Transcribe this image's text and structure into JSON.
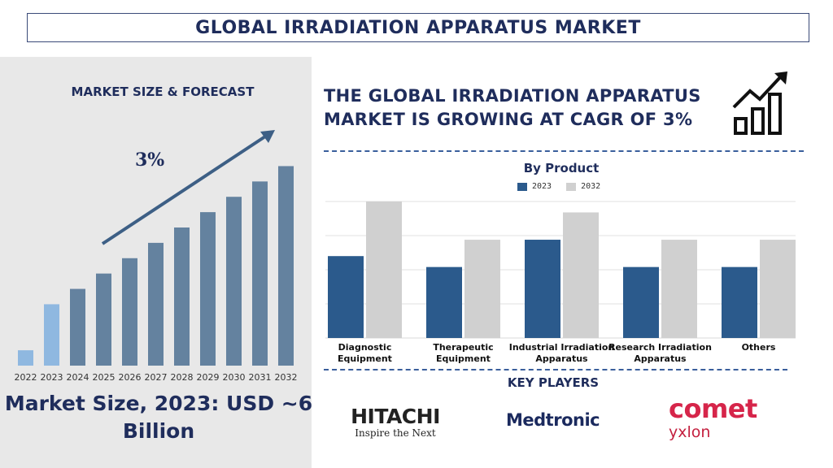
{
  "title": "GLOBAL IRRADIATION APPARATUS MARKET",
  "left": {
    "heading": "MARKET SIZE & FORECAST",
    "cagr_label": "3%",
    "market_size_text": "Market Size, 2023: USD ~6 Billion"
  },
  "headline": "THE GLOBAL IRRADIATION APPARATUS MARKET IS GROWING AT CAGR OF 3%",
  "key_players_title": "KEY PLAYERS",
  "logos": {
    "hitachi": "HITACHI",
    "hitachi_tagline": "Inspire the Next",
    "medtronic": "Medtronic",
    "comet": "comet",
    "comet_sub": "yxlon"
  },
  "colors": {
    "navy": "#1f2d5c",
    "bar_light_blue": "#8fb8e0",
    "bar_slate": "#64829f",
    "series_2023": "#2b5a8c",
    "series_2032": "#d0d0d0",
    "comet_red": "#d6254a"
  },
  "chart_data": [
    {
      "type": "bar",
      "title": "MARKET SIZE & FORECAST",
      "categories": [
        "2022",
        "2023",
        "2024",
        "2025",
        "2026",
        "2027",
        "2028",
        "2029",
        "2030",
        "2031",
        "2032"
      ],
      "values": [
        1,
        4,
        5,
        6,
        7,
        8,
        9,
        10,
        11,
        12,
        13
      ],
      "value_unit": "relative (no axis values shown)",
      "highlight": {
        "2022": "#8fb8e0",
        "2023": "#8fb8e0"
      },
      "annotation": "3%",
      "ylim": [
        0,
        13.5
      ],
      "grid": false
    },
    {
      "type": "bar",
      "title": "By Product",
      "categories": [
        "Diagnostic Equipment",
        "Therapeutic Equipment",
        "Industrial Irradiation Apparatus",
        "Research Irradiation Apparatus",
        "Others"
      ],
      "series": [
        {
          "name": "2023",
          "values": [
            3,
            2.6,
            3.6,
            2.6,
            2.6
          ]
        },
        {
          "name": "2032",
          "values": [
            5,
            3.6,
            4.6,
            3.6,
            3.6
          ]
        }
      ],
      "value_unit": "relative (no axis values shown)",
      "ylim": [
        0,
        5
      ],
      "grid": true,
      "legend": "top"
    }
  ]
}
